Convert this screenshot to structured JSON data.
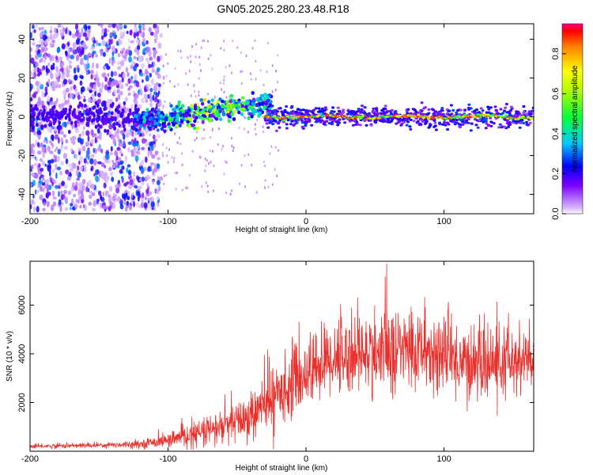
{
  "title": "GN05.2025.280.23.48.R18",
  "chart_data": [
    {
      "type": "heatmap",
      "name": "spectrogram",
      "xlabel": "Height of straight line (km)",
      "ylabel": "Frequency (Hz)",
      "xlim": [
        -200,
        165
      ],
      "ylim": [
        -50,
        48
      ],
      "x_ticks": [
        -200,
        -100,
        0,
        100
      ],
      "y_ticks": [
        -40,
        -20,
        0,
        20,
        40
      ],
      "colorbar": {
        "label": "Normalized spectral amplitude",
        "range": [
          0.0,
          0.95
        ],
        "ticks": [
          0.0,
          0.2,
          0.4,
          0.6,
          0.8
        ],
        "tick_labels": [
          "0.0",
          "0.2",
          "0.4",
          "0.6",
          "0.8"
        ]
      },
      "features": [
        {
          "name": "diffuse noise",
          "x_range": [
            -200,
            -105
          ],
          "freq_range": [
            -48,
            48
          ],
          "amplitude": 0.25
        },
        {
          "name": "rising branch",
          "x_start": -125,
          "x_end": -25,
          "freq_start": -2,
          "freq_end": 8,
          "amplitude": 0.5
        },
        {
          "name": "central carrier",
          "x_start": -30,
          "x_end": 165,
          "freq": 0,
          "amplitude": 0.95
        }
      ]
    },
    {
      "type": "line",
      "name": "snr",
      "xlabel": "Height of straight line (km)",
      "ylabel": "SNR (10 * v/v)",
      "xlim": [
        -200,
        165
      ],
      "ylim": [
        0,
        7800
      ],
      "x_ticks": [
        -200,
        -100,
        0,
        100
      ],
      "y_ticks": [
        2000,
        4000,
        6000
      ],
      "color": "#e8302c",
      "envelope": {
        "x": [
          -200,
          -150,
          -120,
          -100,
          -80,
          -60,
          -40,
          -20,
          0,
          20,
          40,
          60,
          80,
          100,
          120,
          140,
          165
        ],
        "mean": [
          200,
          250,
          300,
          450,
          700,
          1000,
          1400,
          2400,
          3200,
          3900,
          4000,
          4100,
          4200,
          3900,
          3600,
          3600,
          3700
        ],
        "spread": [
          80,
          100,
          150,
          250,
          500,
          700,
          900,
          1200,
          1300,
          1500,
          1500,
          1600,
          1600,
          1500,
          1400,
          1400,
          1400
        ]
      }
    }
  ]
}
